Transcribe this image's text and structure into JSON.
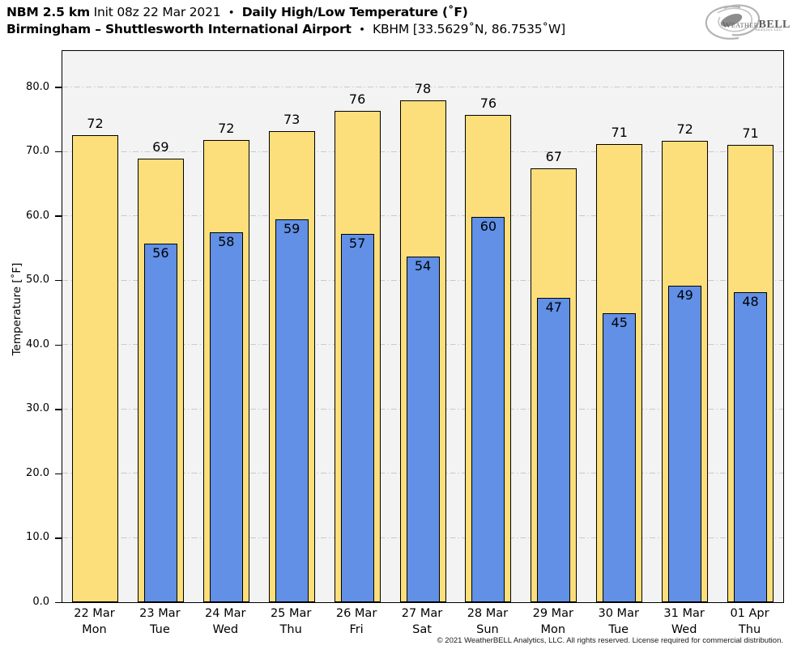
{
  "header": {
    "model": "NBM 2.5 km",
    "init": "Init 08z 22 Mar 2021",
    "sep": "•",
    "product": "Daily High/Low Temperature (˚F)",
    "station_name": "Birmingham – Shuttlesworth International Airport",
    "station_id": "KBHM [33.5629˚N, 86.7535˚W]"
  },
  "logo": {
    "weather": "Weather",
    "bell": "BELL",
    "sub": "Analytics LLC"
  },
  "footer": {
    "copyright": "© 2021 WeatherBELL Analytics, LLC. All rights reserved. License required for commercial distribution."
  },
  "chart_data": {
    "type": "bar",
    "title": "NBM 2.5 km Init 08z 22 Mar 2021 • Daily High/Low Temperature (˚F)",
    "subtitle": "Birmingham – Shuttlesworth International Airport • KBHM [33.5629˚N, 86.7535˚W]",
    "ylabel": "Temperature [˚F]",
    "xlabel": "",
    "ylim": [
      0,
      85.6
    ],
    "yticks": [
      0,
      10,
      20,
      30,
      40,
      50,
      60,
      70,
      80
    ],
    "ytick_labels": [
      "0.0",
      "10.0",
      "20.0",
      "30.0",
      "40.0",
      "50.0",
      "60.0",
      "70.0",
      "80.0"
    ],
    "grid": "horizontal dash-dot",
    "legend_position": "none",
    "categories": [
      {
        "date": "22 Mar",
        "day": "Mon"
      },
      {
        "date": "23 Mar",
        "day": "Tue"
      },
      {
        "date": "24 Mar",
        "day": "Wed"
      },
      {
        "date": "25 Mar",
        "day": "Thu"
      },
      {
        "date": "26 Mar",
        "day": "Fri"
      },
      {
        "date": "27 Mar",
        "day": "Sat"
      },
      {
        "date": "28 Mar",
        "day": "Sun"
      },
      {
        "date": "29 Mar",
        "day": "Mon"
      },
      {
        "date": "30 Mar",
        "day": "Tue"
      },
      {
        "date": "31 Mar",
        "day": "Wed"
      },
      {
        "date": "01 Apr",
        "day": "Thu"
      }
    ],
    "series": [
      {
        "name": "Daily High",
        "color": "#fcdf7a",
        "values": [
          72,
          69,
          72,
          73,
          76,
          78,
          76,
          67,
          71,
          72,
          71
        ],
        "bar_tops_f": [
          72.5,
          68.9,
          71.8,
          73.2,
          76.3,
          77.9,
          75.7,
          67.4,
          71.2,
          71.6,
          71.0
        ]
      },
      {
        "name": "Daily Low",
        "color": "#6190e6",
        "values": [
          null,
          56,
          58,
          59,
          57,
          54,
          60,
          47,
          45,
          49,
          48
        ],
        "bar_tops_f": [
          null,
          55.7,
          57.5,
          59.4,
          57.2,
          53.7,
          59.8,
          47.2,
          44.9,
          49.1,
          48.1
        ]
      }
    ],
    "colors": {
      "high_bar": "#fcdf7a",
      "low_bar": "#6190e6",
      "bar_border": "#000000",
      "plot_bg": "#f3f3f3",
      "gridline": "#c9c9c9"
    }
  }
}
